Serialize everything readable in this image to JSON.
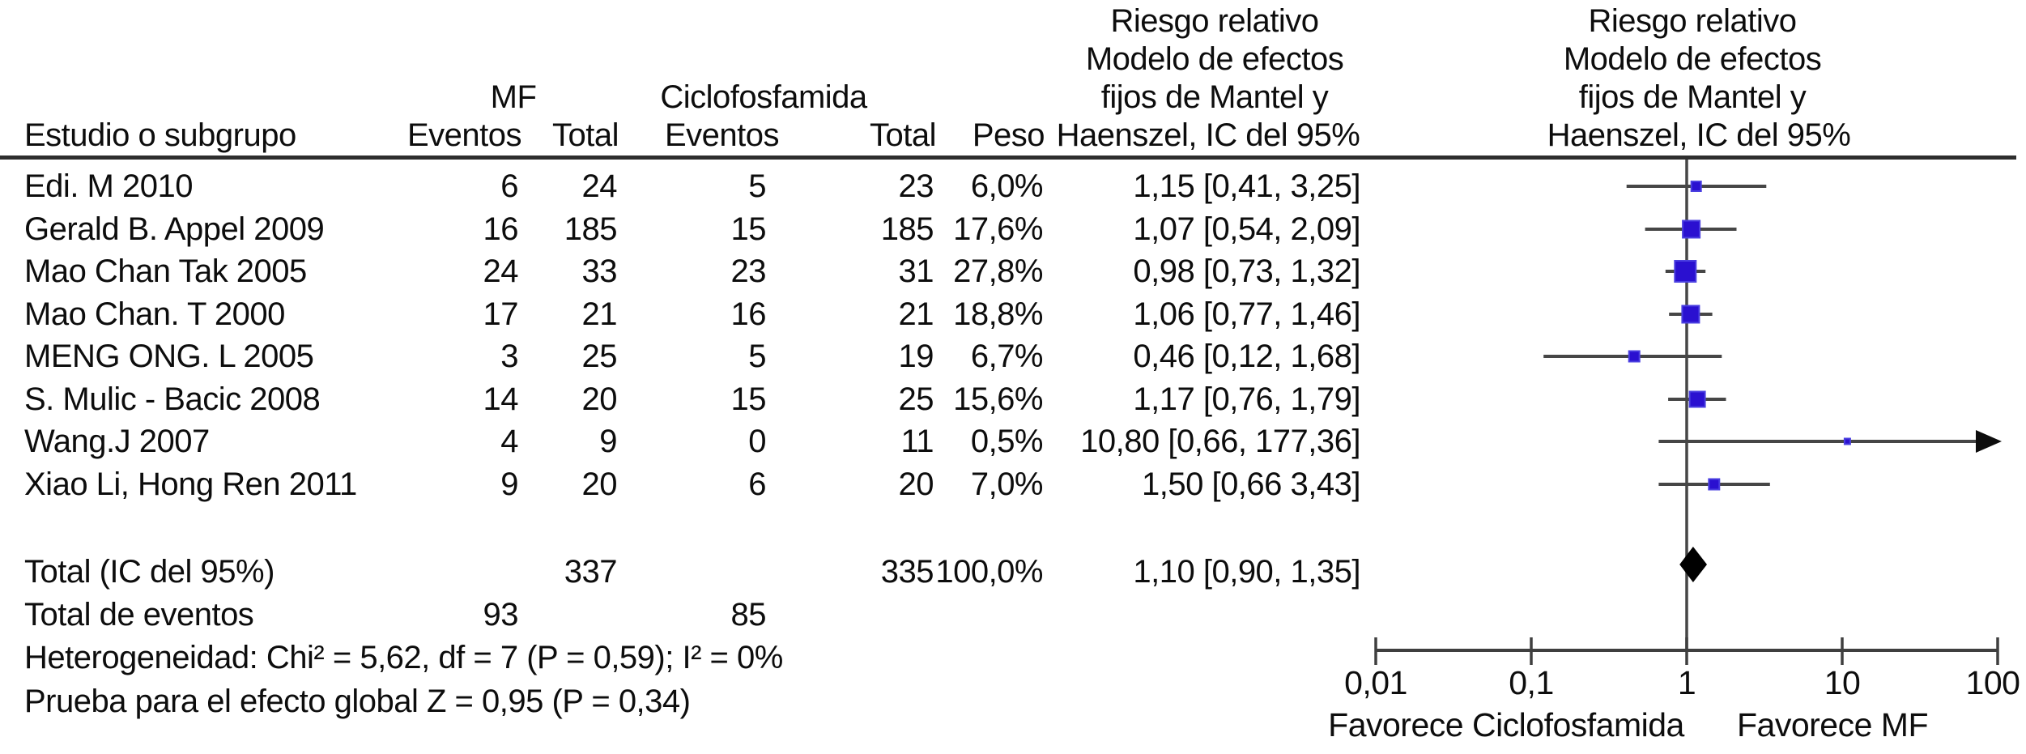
{
  "table": {
    "study_col_header": "Estudio o subgrupo",
    "group1_name": "MF",
    "group2_name": "Ciclofosfamida",
    "sub_eventos1": "Eventos",
    "sub_total1": "Total",
    "sub_eventos2": "Eventos",
    "sub_total2": "Total",
    "peso_header": "Peso",
    "rr_header": [
      "Riesgo relativo",
      "Modelo de efectos",
      "fijos de Mantel y",
      "Haenszel, IC del 95%"
    ],
    "plot_header": [
      "Riesgo relativo",
      "Modelo de efectos",
      "fijos de Mantel y",
      "Haenszel, IC del 95%"
    ]
  },
  "chart_data": {
    "type": "forest",
    "x_scale": "log10",
    "x_axis_range": [
      0.01,
      100
    ],
    "x_tick_values": [
      0.01,
      0.1,
      1,
      10,
      100
    ],
    "x_tick_labels": [
      "0,01",
      "0,1",
      "1",
      "10",
      "100"
    ],
    "favors_left_label": "Favorece Ciclofosfamida",
    "favors_right_label": "Favorece MF",
    "marker_color": "#2a10d0",
    "line_color": "#464646",
    "diamond_color": "#000000",
    "studies": [
      {
        "name": "Edi. M 2010",
        "mf_events": "6",
        "mf_total": "24",
        "c_events": "5",
        "c_total": "23",
        "weight": "6,0%",
        "weight_pct": 6.0,
        "rr_label": "1,15 [0,41, 3,25]",
        "rr": 1.15,
        "ci_low": 0.41,
        "ci_high": 3.25
      },
      {
        "name": "Gerald B. Appel 2009",
        "mf_events": "16",
        "mf_total": "185",
        "c_events": "15",
        "c_total": "185",
        "weight": "17,6%",
        "weight_pct": 17.6,
        "rr_label": "1,07 [0,54, 2,09]",
        "rr": 1.07,
        "ci_low": 0.54,
        "ci_high": 2.09
      },
      {
        "name": "Mao Chan Tak 2005",
        "mf_events": "24",
        "mf_total": "33",
        "c_events": "23",
        "c_total": "31",
        "weight": "27,8%",
        "weight_pct": 27.8,
        "rr_label": "0,98 [0,73, 1,32]",
        "rr": 0.98,
        "ci_low": 0.73,
        "ci_high": 1.32
      },
      {
        "name": "Mao Chan. T 2000",
        "mf_events": "17",
        "mf_total": "21",
        "c_events": "16",
        "c_total": "21",
        "weight": "18,8%",
        "weight_pct": 18.8,
        "rr_label": "1,06 [0,77, 1,46]",
        "rr": 1.06,
        "ci_low": 0.77,
        "ci_high": 1.46
      },
      {
        "name": "MENG ONG. L 2005",
        "mf_events": "3",
        "mf_total": "25",
        "c_events": "5",
        "c_total": "19",
        "weight": "6,7%",
        "weight_pct": 6.7,
        "rr_label": "0,46 [0,12, 1,68]",
        "rr": 0.46,
        "ci_low": 0.12,
        "ci_high": 1.68
      },
      {
        "name": "S. Mulic - Bacic 2008",
        "mf_events": "14",
        "mf_total": "20",
        "c_events": "15",
        "c_total": "25",
        "weight": "15,6%",
        "weight_pct": 15.6,
        "rr_label": "1,17 [0,76, 1,79]",
        "rr": 1.17,
        "ci_low": 0.76,
        "ci_high": 1.79
      },
      {
        "name": "Wang.J 2007",
        "mf_events": "4",
        "mf_total": "9",
        "c_events": "0",
        "c_total": "11",
        "weight": "0,5%",
        "weight_pct": 0.5,
        "rr_label": "10,80 [0,66, 177,36]",
        "rr": 10.8,
        "ci_low": 0.66,
        "ci_high": 177.36
      },
      {
        "name": "Xiao Li, Hong Ren 2011",
        "mf_events": "9",
        "mf_total": "20",
        "c_events": "6",
        "c_total": "20",
        "weight": "7,0%",
        "weight_pct": 7.0,
        "rr_label": "1,50 [0,66 3,43]",
        "rr": 1.5,
        "ci_low": 0.66,
        "ci_high": 3.43
      }
    ],
    "total": {
      "label": "Total (IC del 95%)",
      "mf_total": "337",
      "c_total": "335",
      "weight": "100,0%",
      "rr_label": "1,10 [0,90, 1,35]",
      "rr": 1.1,
      "ci_low": 0.9,
      "ci_high": 1.35
    },
    "total_events": {
      "label": "Total de eventos",
      "mf": "93",
      "c": "85"
    },
    "heterogeneity": "Heterogeneidad: Chi² = 5,62, df = 7 (P = 0,59); I² = 0%",
    "overall_effect": "Prueba para el efecto global Z = 0,95 (P = 0,34)"
  }
}
